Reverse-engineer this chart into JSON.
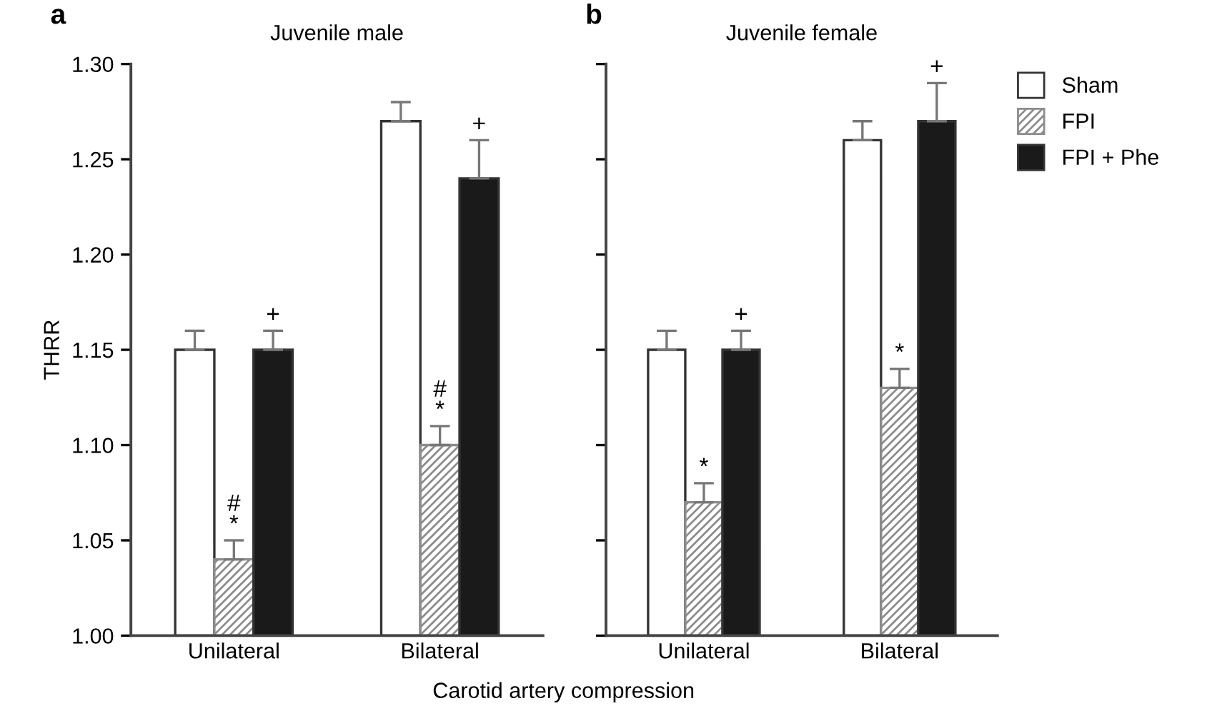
{
  "chart_data": [
    {
      "type": "bar",
      "title": "Juvenile male",
      "ylabel": "THRR",
      "xlabel": "Carotid artery compression",
      "annotations": [
        "a"
      ],
      "categories": [
        "Unilateral",
        "Bilateral"
      ],
      "series": [
        {
          "color": "#ffffff",
          "values": [
            1.15,
            1.27
          ],
          "errors": [
            [
              1.15,
              1.16
            ],
            [
              1.27,
              1.28
            ]
          ]
        },
        {
          "color": "#8c8c8c",
          "values": [
            1.04,
            1.1
          ],
          "errors": [
            [
              1.04,
              1.05
            ],
            [
              1.1,
              1.11
            ]
          ],
          "value_labels": [
            "#\n*",
            "#\n*"
          ]
        },
        {
          "color": "#1a1a1a",
          "values": [
            1.15,
            1.24
          ],
          "errors": [
            [
              1.15,
              1.16
            ],
            [
              1.24,
              1.26
            ]
          ],
          "value_labels": [
            "+",
            "+"
          ]
        }
      ],
      "ylim": [
        1.0,
        1.3
      ],
      "yticks": [
        {
          "value": 1.0,
          "label": "1.00"
        },
        {
          "value": 1.05,
          "label": "1.05"
        },
        {
          "value": 1.1,
          "label": "1.10"
        },
        {
          "value": 1.15,
          "label": "1.15"
        },
        {
          "value": 1.2,
          "label": "1.20"
        },
        {
          "value": 1.25,
          "label": "1.25"
        },
        {
          "value": 1.3,
          "label": "1.30"
        }
      ],
      "grid": false,
      "legend": false
    },
    {
      "type": "bar",
      "title": "Juvenile female",
      "annotations": [
        "b"
      ],
      "categories": [
        "Unilateral",
        "Bilateral"
      ],
      "series": [
        {
          "name": "Sham",
          "color": "#ffffff",
          "values": [
            1.15,
            1.26
          ],
          "errors": [
            [
              1.15,
              1.16
            ],
            [
              1.26,
              1.27
            ]
          ]
        },
        {
          "name": "FPI",
          "color": "#8c8c8c",
          "values": [
            1.07,
            1.13
          ],
          "errors": [
            [
              1.07,
              1.08
            ],
            [
              1.13,
              1.14
            ]
          ],
          "value_labels": [
            "*",
            "*"
          ]
        },
        {
          "name": "FPI + Phe",
          "color": "#1a1a1a",
          "values": [
            1.15,
            1.27
          ],
          "errors": [
            [
              1.15,
              1.16
            ],
            [
              1.27,
              1.29
            ]
          ],
          "value_labels": [
            "+",
            "+"
          ]
        }
      ],
      "ylim": [
        1.0,
        1.3
      ],
      "yticks": [
        {
          "value": 1.0,
          "label": null
        },
        {
          "value": 1.05,
          "label": null
        },
        {
          "value": 1.1,
          "label": null
        },
        {
          "value": 1.15,
          "label": null
        },
        {
          "value": 1.2,
          "label": null
        },
        {
          "value": 1.25,
          "label": null
        },
        {
          "value": 1.3,
          "label": null
        }
      ],
      "tick_labels": "x",
      "grid": false,
      "legend": "right"
    }
  ]
}
